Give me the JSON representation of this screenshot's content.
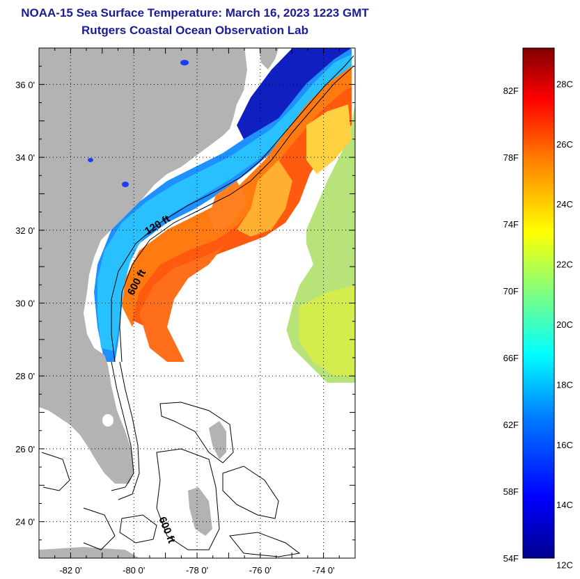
{
  "header": {
    "title": "NOAA-15 Sea Surface Temperature:  March 16, 2023 1223 GMT",
    "subtitle": "Rutgers Coastal Ocean Observation Lab"
  },
  "map": {
    "lat_labels": [
      "36 0'",
      "34 0'",
      "32 0'",
      "30 0'",
      "28 0'",
      "26 0'",
      "24 0'"
    ],
    "lon_labels": [
      "-82 0'",
      "-80 0'",
      "-78 0'",
      "-76 0'",
      "-74 0'"
    ],
    "contour_labels": [
      "120 ft",
      "600 ft",
      "600 ft"
    ],
    "lat_range": [
      23,
      37
    ],
    "lon_range": [
      -83,
      -73
    ]
  },
  "colorbar": {
    "f_labels": [
      "82F",
      "78F",
      "74F",
      "70F",
      "66F",
      "62F",
      "58F",
      "54F"
    ],
    "c_labels": [
      "28C",
      "26C",
      "24C",
      "22C",
      "20C",
      "18C",
      "16C",
      "14C",
      "12C"
    ],
    "colors": [
      "#00008f",
      "#0000ff",
      "#0080ff",
      "#00ffff",
      "#80ff80",
      "#ffff00",
      "#ff8000",
      "#ff0000",
      "#800000"
    ]
  }
}
